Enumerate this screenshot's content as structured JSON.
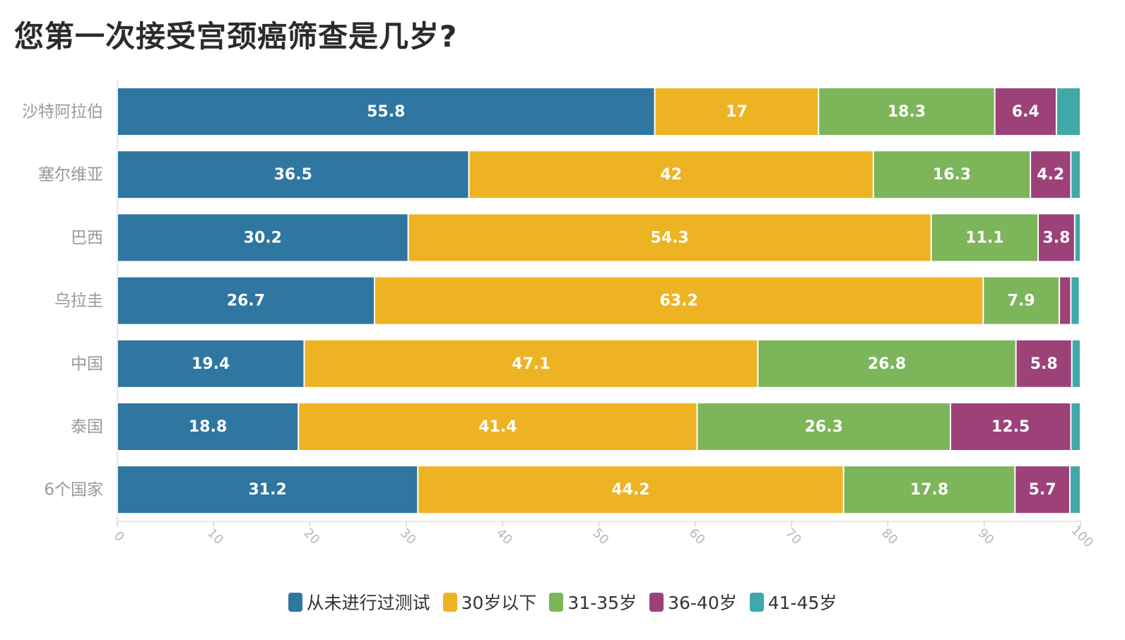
{
  "chart_data": {
    "type": "bar",
    "orientation": "horizontal",
    "stacked": true,
    "title": "您第一次接受宫颈癌筛查是几岁?",
    "categories": [
      "沙特阿拉伯",
      "塞尔维亚",
      "巴西",
      "乌拉圭",
      "中国",
      "泰国",
      "6个国家"
    ],
    "series": [
      {
        "name": "从未进行过测试",
        "color": "#2f76a0",
        "values": [
          55.8,
          36.5,
          30.2,
          26.7,
          19.4,
          18.8,
          31.2
        ]
      },
      {
        "name": "30岁以下",
        "color": "#eeb322",
        "values": [
          17,
          42,
          54.3,
          63.2,
          47.1,
          41.4,
          44.2
        ]
      },
      {
        "name": "31-35岁",
        "color": "#7db55a",
        "values": [
          18.3,
          16.3,
          11.1,
          7.9,
          26.8,
          26.3,
          17.8
        ]
      },
      {
        "name": "36-40岁",
        "color": "#9c4279",
        "values": [
          6.4,
          4.2,
          3.8,
          1.2,
          5.8,
          12.5,
          5.7
        ]
      },
      {
        "name": "41-45岁",
        "color": "#3fa9a9",
        "values": [
          2.5,
          1.0,
          0.6,
          0.9,
          0.9,
          1.0,
          1.1
        ]
      }
    ],
    "xlim": [
      0,
      100
    ],
    "xticks": [
      "0",
      "10",
      "20",
      "30",
      "40",
      "50",
      "60",
      "70",
      "80",
      "90",
      "100"
    ],
    "label_min_value": 3.5,
    "legend_position": "bottom-center",
    "grid": false
  }
}
